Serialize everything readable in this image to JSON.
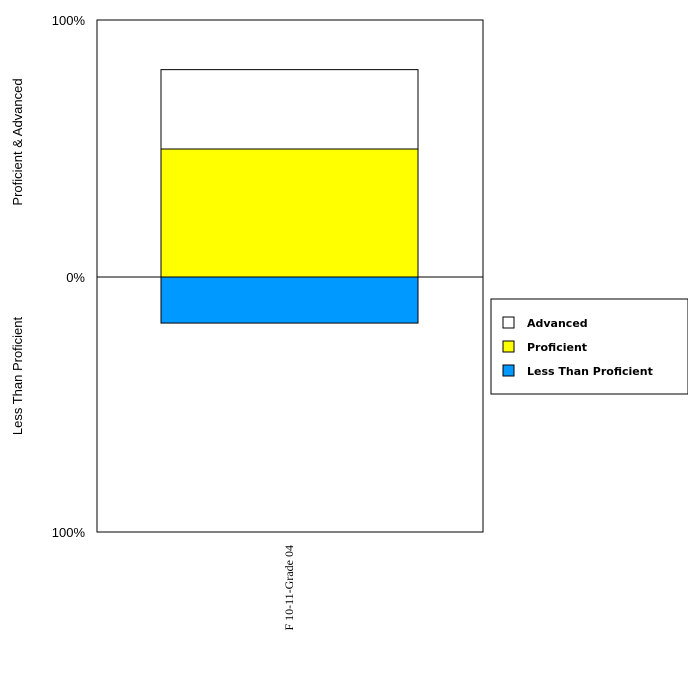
{
  "chart_data": {
    "type": "bar",
    "stacked": true,
    "diverging": true,
    "categories": [
      "F 10-11-Grade 04"
    ],
    "series": [
      {
        "name": "Advanced",
        "direction": "up",
        "values": [
          31
        ],
        "color": "#ffffff"
      },
      {
        "name": "Proficient",
        "direction": "up",
        "values": [
          50
        ],
        "color": "#ffff00"
      },
      {
        "name": "Less Than Proficient",
        "direction": "down",
        "values": [
          18
        ],
        "color": "#0099ff"
      }
    ],
    "legend_order": [
      "Advanced",
      "Proficient",
      "Less Than Proficient"
    ],
    "y_tick_labels": {
      "top": "100%",
      "center": "0%",
      "bottom": "100%"
    },
    "ylabel_upper": "Proficient & Advanced",
    "ylabel_lower": "Less Than Proficient",
    "ylim": [
      -100,
      100
    ],
    "legend_position": "right",
    "grid": false
  }
}
